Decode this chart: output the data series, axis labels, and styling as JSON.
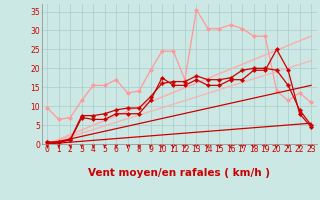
{
  "bg_color": "#cce8e4",
  "grid_color": "#aacccc",
  "xlabel": "Vent moyen/en rafales ( km/h )",
  "xlabel_color": "#cc0000",
  "x_ticks": [
    0,
    1,
    2,
    3,
    4,
    5,
    6,
    7,
    8,
    9,
    10,
    11,
    12,
    13,
    14,
    15,
    16,
    17,
    18,
    19,
    20,
    21,
    22,
    23
  ],
  "ylim": [
    0,
    37
  ],
  "yticks": [
    0,
    5,
    10,
    15,
    20,
    25,
    30,
    35
  ],
  "series": [
    {
      "x": [
        0,
        1,
        2,
        3,
        4,
        5,
        6,
        7,
        8,
        9,
        10,
        11,
        12,
        13,
        14,
        15,
        16,
        17,
        18,
        19,
        20,
        21,
        22,
        23
      ],
      "y": [
        9.5,
        6.5,
        7.0,
        11.5,
        15.5,
        15.5,
        17.0,
        13.5,
        14.0,
        19.5,
        24.5,
        24.5,
        17.0,
        35.5,
        30.5,
        30.5,
        31.5,
        30.5,
        28.5,
        28.5,
        14.0,
        11.5,
        13.5,
        11.0
      ],
      "color": "#ff9999",
      "marker": "D",
      "markersize": 2.0,
      "linewidth": 0.9,
      "alpha": 1.0
    },
    {
      "x": [
        0,
        23
      ],
      "y": [
        0,
        28.5
      ],
      "color": "#ffaaaa",
      "marker": null,
      "markersize": 0,
      "linewidth": 1.0,
      "alpha": 1.0
    },
    {
      "x": [
        0,
        23
      ],
      "y": [
        0,
        22.0
      ],
      "color": "#ffaaaa",
      "marker": null,
      "markersize": 0,
      "linewidth": 1.0,
      "alpha": 0.8
    },
    {
      "x": [
        0,
        1,
        2,
        3,
        4,
        5,
        6,
        7,
        8,
        9,
        10,
        11,
        12,
        13,
        14,
        15,
        16,
        17,
        18,
        19,
        20,
        21,
        22,
        23
      ],
      "y": [
        0.5,
        0.5,
        1.0,
        7.0,
        6.5,
        6.5,
        8.0,
        8.0,
        8.0,
        11.5,
        17.5,
        15.5,
        15.5,
        17.0,
        15.5,
        15.5,
        17.0,
        17.0,
        19.5,
        19.5,
        25.0,
        19.5,
        8.0,
        4.5
      ],
      "color": "#cc0000",
      "marker": "D",
      "markersize": 2.0,
      "linewidth": 0.9,
      "alpha": 1.0
    },
    {
      "x": [
        0,
        1,
        2,
        3,
        4,
        5,
        6,
        7,
        8,
        9,
        10,
        11,
        12,
        13,
        14,
        15,
        16,
        17,
        18,
        19,
        20,
        21,
        22,
        23
      ],
      "y": [
        0.5,
        0.5,
        1.2,
        7.5,
        7.5,
        8.0,
        9.0,
        9.5,
        9.5,
        12.5,
        16.0,
        16.5,
        16.5,
        18.0,
        17.0,
        17.0,
        17.5,
        19.5,
        20.0,
        20.0,
        19.5,
        15.5,
        9.0,
        5.0
      ],
      "color": "#cc0000",
      "marker": "P",
      "markersize": 2.5,
      "linewidth": 0.9,
      "alpha": 1.0
    },
    {
      "x": [
        0,
        23
      ],
      "y": [
        0,
        15.5
      ],
      "color": "#cc0000",
      "marker": null,
      "markersize": 0,
      "linewidth": 0.9,
      "alpha": 1.0
    },
    {
      "x": [
        0,
        23
      ],
      "y": [
        0,
        5.5
      ],
      "color": "#cc0000",
      "marker": null,
      "markersize": 0,
      "linewidth": 0.9,
      "alpha": 1.0
    }
  ],
  "arrow_color": "#cc0000",
  "tick_color": "#cc0000",
  "tick_fontsize": 5.5,
  "xlabel_fontsize": 7.5
}
